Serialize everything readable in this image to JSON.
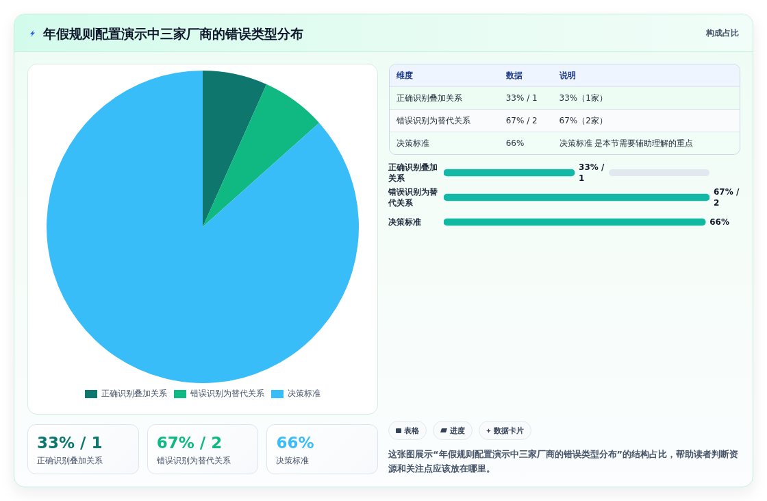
{
  "chart_data": [
    {
      "type": "other",
      "title": "年假规则配置演示中三家厂商的错误类型分布",
      "subtitle": "构成占比"
    },
    {
      "type": "pie",
      "categories": [
        "正确识别叠加关系",
        "错误识别为替代关系",
        "决策标准"
      ],
      "values": [
        6.7,
        6.7,
        86.6
      ],
      "colors": [
        "#0f766e",
        "#10b981",
        "#38bdf8"
      ],
      "legend": "bottom"
    },
    {
      "type": "other",
      "annotations": [
        "维度",
        "数据",
        "说明",
        "正确识别叠加关系",
        "33% / 1",
        "33%（1家）",
        "错误识别为替代关系",
        "67% / 2",
        "67%（2家）",
        "决策标准",
        "66%",
        "决策标准 是本节需要辅助理解的重点"
      ]
    },
    {
      "type": "bar",
      "orientation": "horizontal",
      "categories": [
        "正确识别叠加关系",
        "错误识别为替代关系",
        "决策标准"
      ],
      "values": [
        33,
        67,
        66
      ],
      "colors": [
        "#14b8a6",
        "#14b8a6",
        "#10b9a0"
      ],
      "value_labels": [
        "33% / 1",
        "67% / 2",
        "66%"
      ]
    },
    {
      "type": "other",
      "annotations": [
        "33% / 1",
        "正确识别叠加关系",
        "67% / 2",
        "错误识别为替代关系",
        "66%",
        "决策标准"
      ],
      "colors": [
        "#0f766e",
        "#10b981",
        "#38bdf8"
      ]
    },
    {
      "type": "other",
      "categories": [
        "表格",
        "进度",
        "数据卡片"
      ],
      "annotations": [
        "这张图展示“年假规则配置演示中三家厂商的错误类型分布”的结构占比，帮助读者判断资源和关注点应该放在哪里。"
      ]
    }
  ]
}
